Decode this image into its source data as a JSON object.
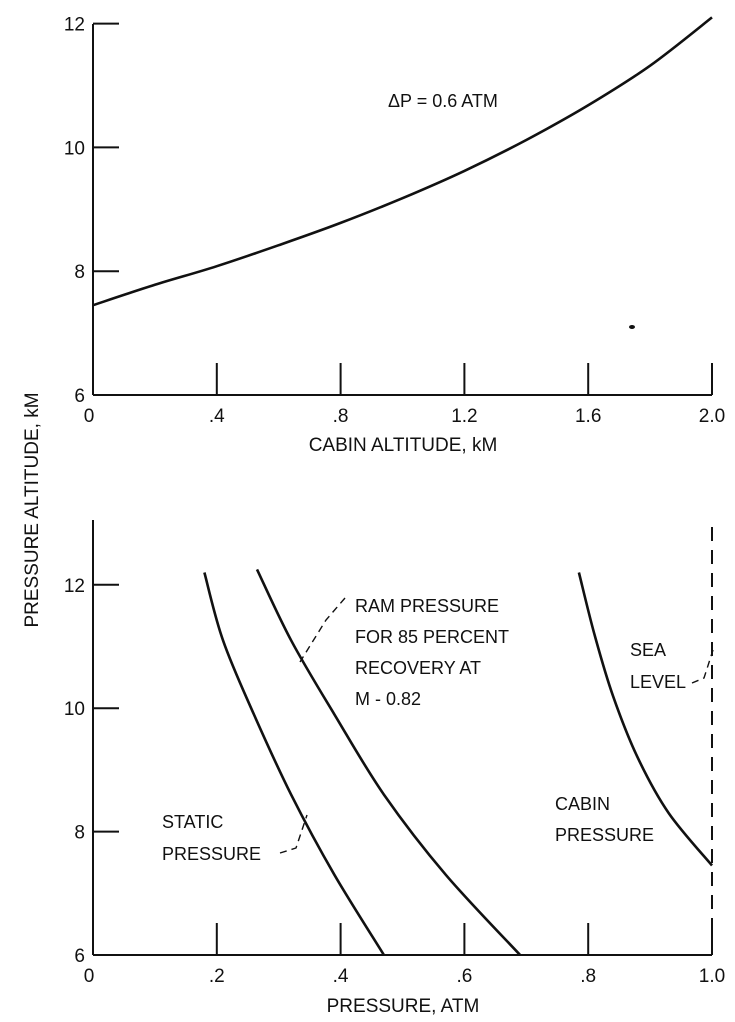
{
  "figure": {
    "shared_ylabel": "PRESSURE ALTITUDE, kM"
  },
  "chart_data": [
    {
      "type": "line",
      "title": "",
      "xlabel": "CABIN ALTITUDE, kM",
      "ylabel": "PRESSURE ALTITUDE, kM",
      "xlim": [
        0,
        2.0
      ],
      "ylim": [
        6,
        12
      ],
      "grid": false,
      "x_ticks": [
        0,
        0.4,
        0.8,
        1.2,
        1.6,
        2.0
      ],
      "x_tick_labels": [
        "0",
        ".4",
        ".8",
        "1.2",
        "1.6",
        "2.0"
      ],
      "y_ticks": [
        6,
        8,
        10,
        12
      ],
      "y_tick_labels": [
        "6",
        "8",
        "10",
        "12"
      ],
      "series": [
        {
          "name": "ΔP = 0.6 ATM",
          "x": [
            0,
            0.2,
            0.4,
            0.6,
            0.8,
            1.0,
            1.2,
            1.4,
            1.6,
            1.8,
            2.0
          ],
          "y": [
            7.45,
            7.78,
            8.08,
            8.42,
            8.78,
            9.18,
            9.62,
            10.12,
            10.68,
            11.32,
            12.1
          ]
        }
      ],
      "annotations": [
        {
          "text": "ΔP = 0.6 ATM"
        }
      ]
    },
    {
      "type": "line",
      "title": "",
      "xlabel": "PRESSURE, ATM",
      "ylabel": "PRESSURE ALTITUDE, kM",
      "xlim": [
        0,
        1.0
      ],
      "ylim": [
        6,
        13
      ],
      "grid": false,
      "x_ticks": [
        0,
        0.2,
        0.4,
        0.6,
        0.8,
        1.0
      ],
      "x_tick_labels": [
        "0",
        ".2",
        ".4",
        ".6",
        ".8",
        "1.0"
      ],
      "y_ticks": [
        6,
        8,
        10,
        12
      ],
      "y_tick_labels": [
        "6",
        "8",
        "10",
        "12"
      ],
      "series": [
        {
          "name": "STATIC PRESSURE",
          "x": [
            0.47,
            0.39,
            0.32,
            0.26,
            0.21,
            0.18
          ],
          "y": [
            6,
            7.3,
            8.6,
            9.9,
            11.1,
            12.2
          ]
        },
        {
          "name": "RAM PRESSURE FOR 85 PERCENT RECOVERY AT M - 0.82",
          "x": [
            0.69,
            0.57,
            0.47,
            0.39,
            0.32,
            0.265
          ],
          "y": [
            6,
            7.3,
            8.6,
            9.9,
            11.1,
            12.25
          ]
        },
        {
          "name": "CABIN PRESSURE",
          "x": [
            1.0,
            0.93,
            0.88,
            0.84,
            0.81,
            0.785
          ],
          "y": [
            7.45,
            8.3,
            9.2,
            10.2,
            11.2,
            12.2
          ]
        },
        {
          "name": "SEA LEVEL",
          "x": [
            1.0,
            1.0
          ],
          "y": [
            6,
            13
          ]
        }
      ],
      "annotations": [
        {
          "text_lines": [
            "STATIC",
            "PRESSURE"
          ]
        },
        {
          "text_lines": [
            "RAM PRESSURE",
            "FOR 85 PERCENT",
            "RECOVERY AT",
            "M - 0.82"
          ]
        },
        {
          "text_lines": [
            "SEA",
            "LEVEL"
          ]
        },
        {
          "text_lines": [
            "CABIN",
            "PRESSURE"
          ]
        }
      ]
    }
  ]
}
